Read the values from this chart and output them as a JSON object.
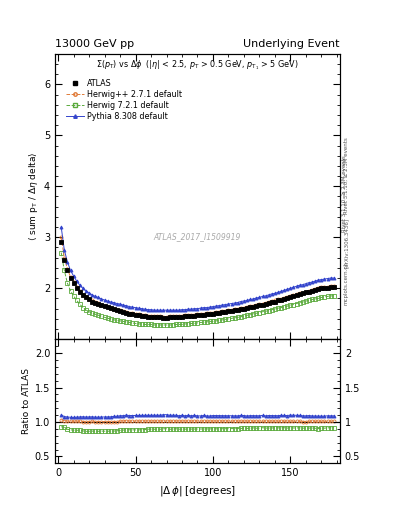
{
  "title_left": "13000 GeV pp",
  "title_right": "Underlying Event",
  "subtitle": "Σ(p_{T}) vs Δϕ  (|η| < 2.5, p_{T} > 0.5 GeV, p_{T1} > 5 GeV)",
  "watermark": "ATLAS_2017_I1509919",
  "ylabel_main": "⟨ sum p_{T} / Δη delta⟩",
  "ylabel_ratio": "Ratio to ATLAS",
  "xlabel": "|Δ ϕ| [degrees]",
  "ylim_main": [
    1.0,
    6.6
  ],
  "ylim_ratio": [
    0.4,
    2.2
  ],
  "yticks_main": [
    2,
    3,
    4,
    5,
    6
  ],
  "yticks_ratio": [
    0.5,
    1.0,
    1.5,
    2.0
  ],
  "xlim": [
    -2,
    182
  ],
  "xticks": [
    0,
    50,
    100,
    150
  ],
  "right_label_main": "Rivet 3.1.10, ≥ 2.3M events",
  "right_label_arxiv": "[arXiv:1306.3436]",
  "right_label_mcplots": "mcplots.cern.ch",
  "x_data": [
    2,
    4,
    6,
    8,
    10,
    12,
    14,
    16,
    18,
    20,
    22,
    24,
    26,
    28,
    30,
    32,
    34,
    36,
    38,
    40,
    42,
    44,
    46,
    48,
    50,
    52,
    54,
    56,
    58,
    60,
    62,
    64,
    66,
    68,
    70,
    72,
    74,
    76,
    78,
    80,
    82,
    84,
    86,
    88,
    90,
    92,
    94,
    96,
    98,
    100,
    102,
    104,
    106,
    108,
    110,
    112,
    114,
    116,
    118,
    120,
    122,
    124,
    126,
    128,
    130,
    132,
    134,
    136,
    138,
    140,
    142,
    144,
    146,
    148,
    150,
    152,
    154,
    156,
    158,
    160,
    162,
    164,
    166,
    168,
    170,
    172,
    174,
    176,
    178
  ],
  "y_atlas": [
    2.9,
    2.55,
    2.35,
    2.2,
    2.1,
    2.0,
    1.92,
    1.86,
    1.82,
    1.78,
    1.74,
    1.72,
    1.7,
    1.67,
    1.65,
    1.63,
    1.61,
    1.59,
    1.57,
    1.55,
    1.53,
    1.51,
    1.5,
    1.49,
    1.48,
    1.47,
    1.46,
    1.45,
    1.44,
    1.44,
    1.43,
    1.43,
    1.43,
    1.42,
    1.42,
    1.43,
    1.43,
    1.43,
    1.44,
    1.44,
    1.45,
    1.45,
    1.46,
    1.46,
    1.47,
    1.48,
    1.48,
    1.49,
    1.5,
    1.5,
    1.51,
    1.52,
    1.53,
    1.54,
    1.55,
    1.56,
    1.57,
    1.58,
    1.59,
    1.6,
    1.62,
    1.63,
    1.64,
    1.66,
    1.67,
    1.68,
    1.7,
    1.71,
    1.73,
    1.74,
    1.76,
    1.77,
    1.79,
    1.81,
    1.82,
    1.84,
    1.86,
    1.88,
    1.9,
    1.92,
    1.93,
    1.95,
    1.97,
    1.99,
    2.0,
    2.01,
    2.01,
    2.02,
    2.02
  ],
  "y_herwig271": [
    3.0,
    2.6,
    2.38,
    2.22,
    2.12,
    2.02,
    1.94,
    1.87,
    1.83,
    1.79,
    1.76,
    1.73,
    1.71,
    1.68,
    1.66,
    1.64,
    1.62,
    1.6,
    1.58,
    1.57,
    1.55,
    1.54,
    1.52,
    1.51,
    1.5,
    1.49,
    1.48,
    1.47,
    1.46,
    1.46,
    1.45,
    1.45,
    1.45,
    1.44,
    1.44,
    1.45,
    1.45,
    1.45,
    1.46,
    1.46,
    1.47,
    1.47,
    1.48,
    1.48,
    1.49,
    1.5,
    1.5,
    1.51,
    1.52,
    1.52,
    1.53,
    1.54,
    1.55,
    1.56,
    1.57,
    1.58,
    1.59,
    1.6,
    1.61,
    1.62,
    1.64,
    1.65,
    1.66,
    1.68,
    1.69,
    1.7,
    1.72,
    1.73,
    1.75,
    1.76,
    1.78,
    1.79,
    1.81,
    1.83,
    1.84,
    1.86,
    1.88,
    1.9,
    1.91,
    1.93,
    1.95,
    1.97,
    1.99,
    2.01,
    2.02,
    2.03,
    2.03,
    2.04,
    2.05
  ],
  "y_herwig721": [
    2.7,
    2.35,
    2.1,
    1.95,
    1.85,
    1.76,
    1.69,
    1.62,
    1.57,
    1.54,
    1.51,
    1.49,
    1.47,
    1.45,
    1.43,
    1.41,
    1.4,
    1.38,
    1.37,
    1.36,
    1.35,
    1.34,
    1.33,
    1.32,
    1.31,
    1.3,
    1.3,
    1.29,
    1.29,
    1.29,
    1.28,
    1.28,
    1.28,
    1.28,
    1.28,
    1.28,
    1.28,
    1.29,
    1.29,
    1.29,
    1.3,
    1.3,
    1.31,
    1.31,
    1.32,
    1.33,
    1.33,
    1.34,
    1.35,
    1.35,
    1.36,
    1.37,
    1.38,
    1.39,
    1.4,
    1.41,
    1.42,
    1.43,
    1.44,
    1.46,
    1.47,
    1.48,
    1.5,
    1.51,
    1.52,
    1.54,
    1.55,
    1.56,
    1.58,
    1.59,
    1.61,
    1.62,
    1.64,
    1.65,
    1.67,
    1.68,
    1.7,
    1.72,
    1.73,
    1.75,
    1.76,
    1.78,
    1.79,
    1.8,
    1.82,
    1.83,
    1.84,
    1.85,
    1.85
  ],
  "y_pythia": [
    3.2,
    2.75,
    2.52,
    2.35,
    2.24,
    2.14,
    2.06,
    2.0,
    1.95,
    1.91,
    1.87,
    1.84,
    1.82,
    1.79,
    1.77,
    1.75,
    1.73,
    1.72,
    1.7,
    1.69,
    1.67,
    1.66,
    1.64,
    1.63,
    1.62,
    1.61,
    1.6,
    1.59,
    1.58,
    1.58,
    1.57,
    1.57,
    1.57,
    1.57,
    1.57,
    1.57,
    1.57,
    1.57,
    1.57,
    1.58,
    1.58,
    1.59,
    1.59,
    1.6,
    1.6,
    1.61,
    1.62,
    1.62,
    1.63,
    1.64,
    1.65,
    1.66,
    1.67,
    1.68,
    1.69,
    1.7,
    1.71,
    1.72,
    1.74,
    1.75,
    1.76,
    1.78,
    1.79,
    1.81,
    1.82,
    1.84,
    1.85,
    1.87,
    1.89,
    1.9,
    1.92,
    1.94,
    1.96,
    1.98,
    2.0,
    2.02,
    2.04,
    2.06,
    2.07,
    2.09,
    2.11,
    2.12,
    2.14,
    2.16,
    2.17,
    2.18,
    2.19,
    2.2,
    2.2
  ]
}
